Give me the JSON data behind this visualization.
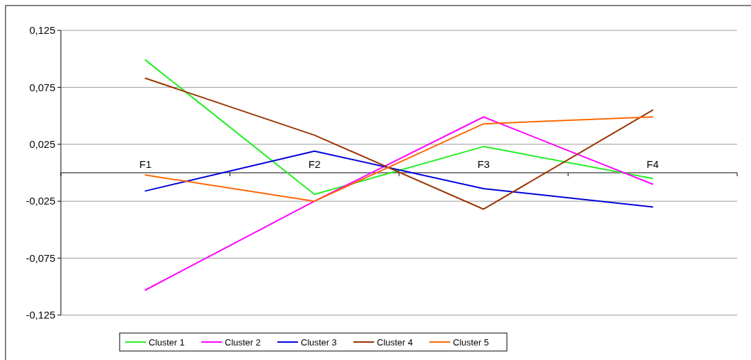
{
  "chart_data": {
    "type": "line",
    "categories": [
      "F1",
      "F2",
      "F3",
      "F4"
    ],
    "series": [
      {
        "name": "Cluster 1",
        "color": "#22ee22",
        "values": [
          0.099,
          -0.019,
          0.023,
          -0.005
        ]
      },
      {
        "name": "Cluster 2",
        "color": "#ff00ff",
        "values": [
          -0.103,
          -0.025,
          0.049,
          -0.01
        ]
      },
      {
        "name": "Cluster 3",
        "color": "#0000dd",
        "values": [
          -0.016,
          0.019,
          -0.014,
          -0.03
        ]
      },
      {
        "name": "Cluster 4",
        "color": "#993300",
        "values": [
          0.083,
          0.033,
          -0.032,
          0.055
        ]
      },
      {
        "name": "Cluster 5",
        "color": "#ff6600",
        "values": [
          -0.002,
          -0.025,
          0.043,
          0.049
        ]
      }
    ],
    "ylim": [
      -0.125,
      0.125
    ],
    "yticks": [
      {
        "value": -0.125,
        "label": "-0,125"
      },
      {
        "value": -0.075,
        "label": "-0,075"
      },
      {
        "value": -0.025,
        "label": "-0,025"
      },
      {
        "value": 0.025,
        "label": "0,025"
      },
      {
        "value": 0.075,
        "label": "0,075"
      },
      {
        "value": 0.125,
        "label": "0,125"
      }
    ],
    "grid": "y",
    "legend": "bottom",
    "marker": "none",
    "line_style": "solid"
  }
}
